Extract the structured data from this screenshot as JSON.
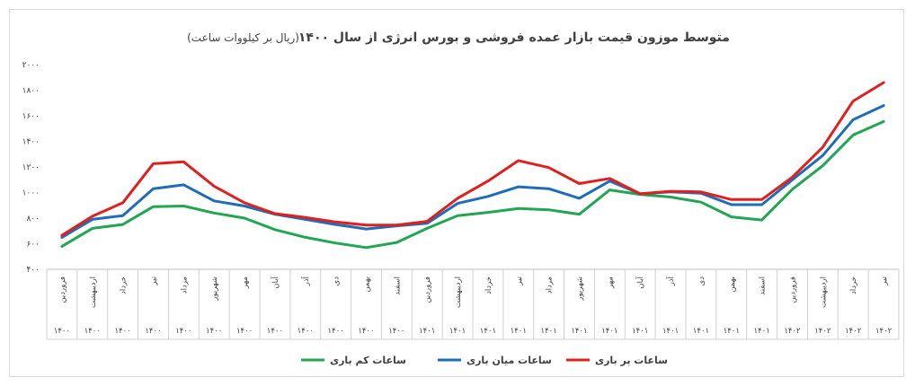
{
  "chart_data": {
    "type": "line",
    "title": "متوسط موزون قیمت بازار عمده فروشی و بورس انرژی از سال ۱۴۰۰",
    "subtitle": "(ریال بر کیلووات ساعت)",
    "ylim": [
      400,
      2000
    ],
    "yticks": [
      "۴۰۰",
      "۶۰۰",
      "۸۰۰",
      "۱۰۰۰",
      "۱۲۰۰",
      "۱۴۰۰",
      "۱۶۰۰",
      "۱۸۰۰",
      "۲۰۰۰"
    ],
    "ytick_values": [
      400,
      600,
      800,
      1000,
      1200,
      1400,
      1600,
      1800,
      2000
    ],
    "grid": false,
    "legend_position": "bottom",
    "months": [
      "فروردین",
      "اردیبهشت",
      "خرداد",
      "تیر",
      "مرداد",
      "شهریور",
      "مهر",
      "آبان",
      "آذر",
      "دی",
      "بهمن",
      "اسفند",
      "فروردین",
      "اردیبهشت",
      "خرداد",
      "تیر",
      "مرداد",
      "شهریور",
      "مهر",
      "آبان",
      "آذر",
      "دی",
      "بهمن",
      "اسفند",
      "فروردین",
      "اردیبهشت",
      "خرداد",
      "تیر"
    ],
    "years": [
      "۱۴۰۰",
      "۱۴۰۰",
      "۱۴۰۰",
      "۱۴۰۰",
      "۱۴۰۰",
      "۱۴۰۰",
      "۱۴۰۰",
      "۱۴۰۰",
      "۱۴۰۰",
      "۱۴۰۰",
      "۱۴۰۰",
      "۱۴۰۰",
      "۱۴۰۱",
      "۱۴۰۱",
      "۱۴۰۱",
      "۱۴۰۱",
      "۱۴۰۱",
      "۱۴۰۱",
      "۱۴۰۱",
      "۱۴۰۱",
      "۱۴۰۱",
      "۱۴۰۱",
      "۱۴۰۱",
      "۱۴۰۱",
      "۱۴۰۲",
      "۱۴۰۲",
      "۱۴۰۲",
      "۱۴۰۲"
    ],
    "series": [
      {
        "name": "ساعات کم باری",
        "color": "#22a652",
        "values": [
          580,
          720,
          750,
          890,
          895,
          840,
          800,
          710,
          650,
          605,
          570,
          610,
          720,
          820,
          845,
          875,
          865,
          830,
          1020,
          985,
          965,
          925,
          810,
          785,
          1025,
          1210,
          1450,
          1555
        ]
      },
      {
        "name": "ساعات میان باری",
        "color": "#1f6cb8",
        "values": [
          650,
          790,
          820,
          1030,
          1060,
          935,
          895,
          830,
          790,
          750,
          715,
          740,
          760,
          915,
          970,
          1045,
          1030,
          955,
          1090,
          990,
          1005,
          995,
          905,
          905,
          1100,
          1290,
          1570,
          1680
        ]
      },
      {
        "name": "ساعات پر باری",
        "color": "#e0201f",
        "values": [
          665,
          815,
          920,
          1225,
          1240,
          1050,
          920,
          835,
          805,
          770,
          745,
          745,
          775,
          955,
          1090,
          1250,
          1195,
          1070,
          1110,
          990,
          1010,
          1005,
          945,
          945,
          1120,
          1355,
          1715,
          1860
        ]
      }
    ]
  }
}
